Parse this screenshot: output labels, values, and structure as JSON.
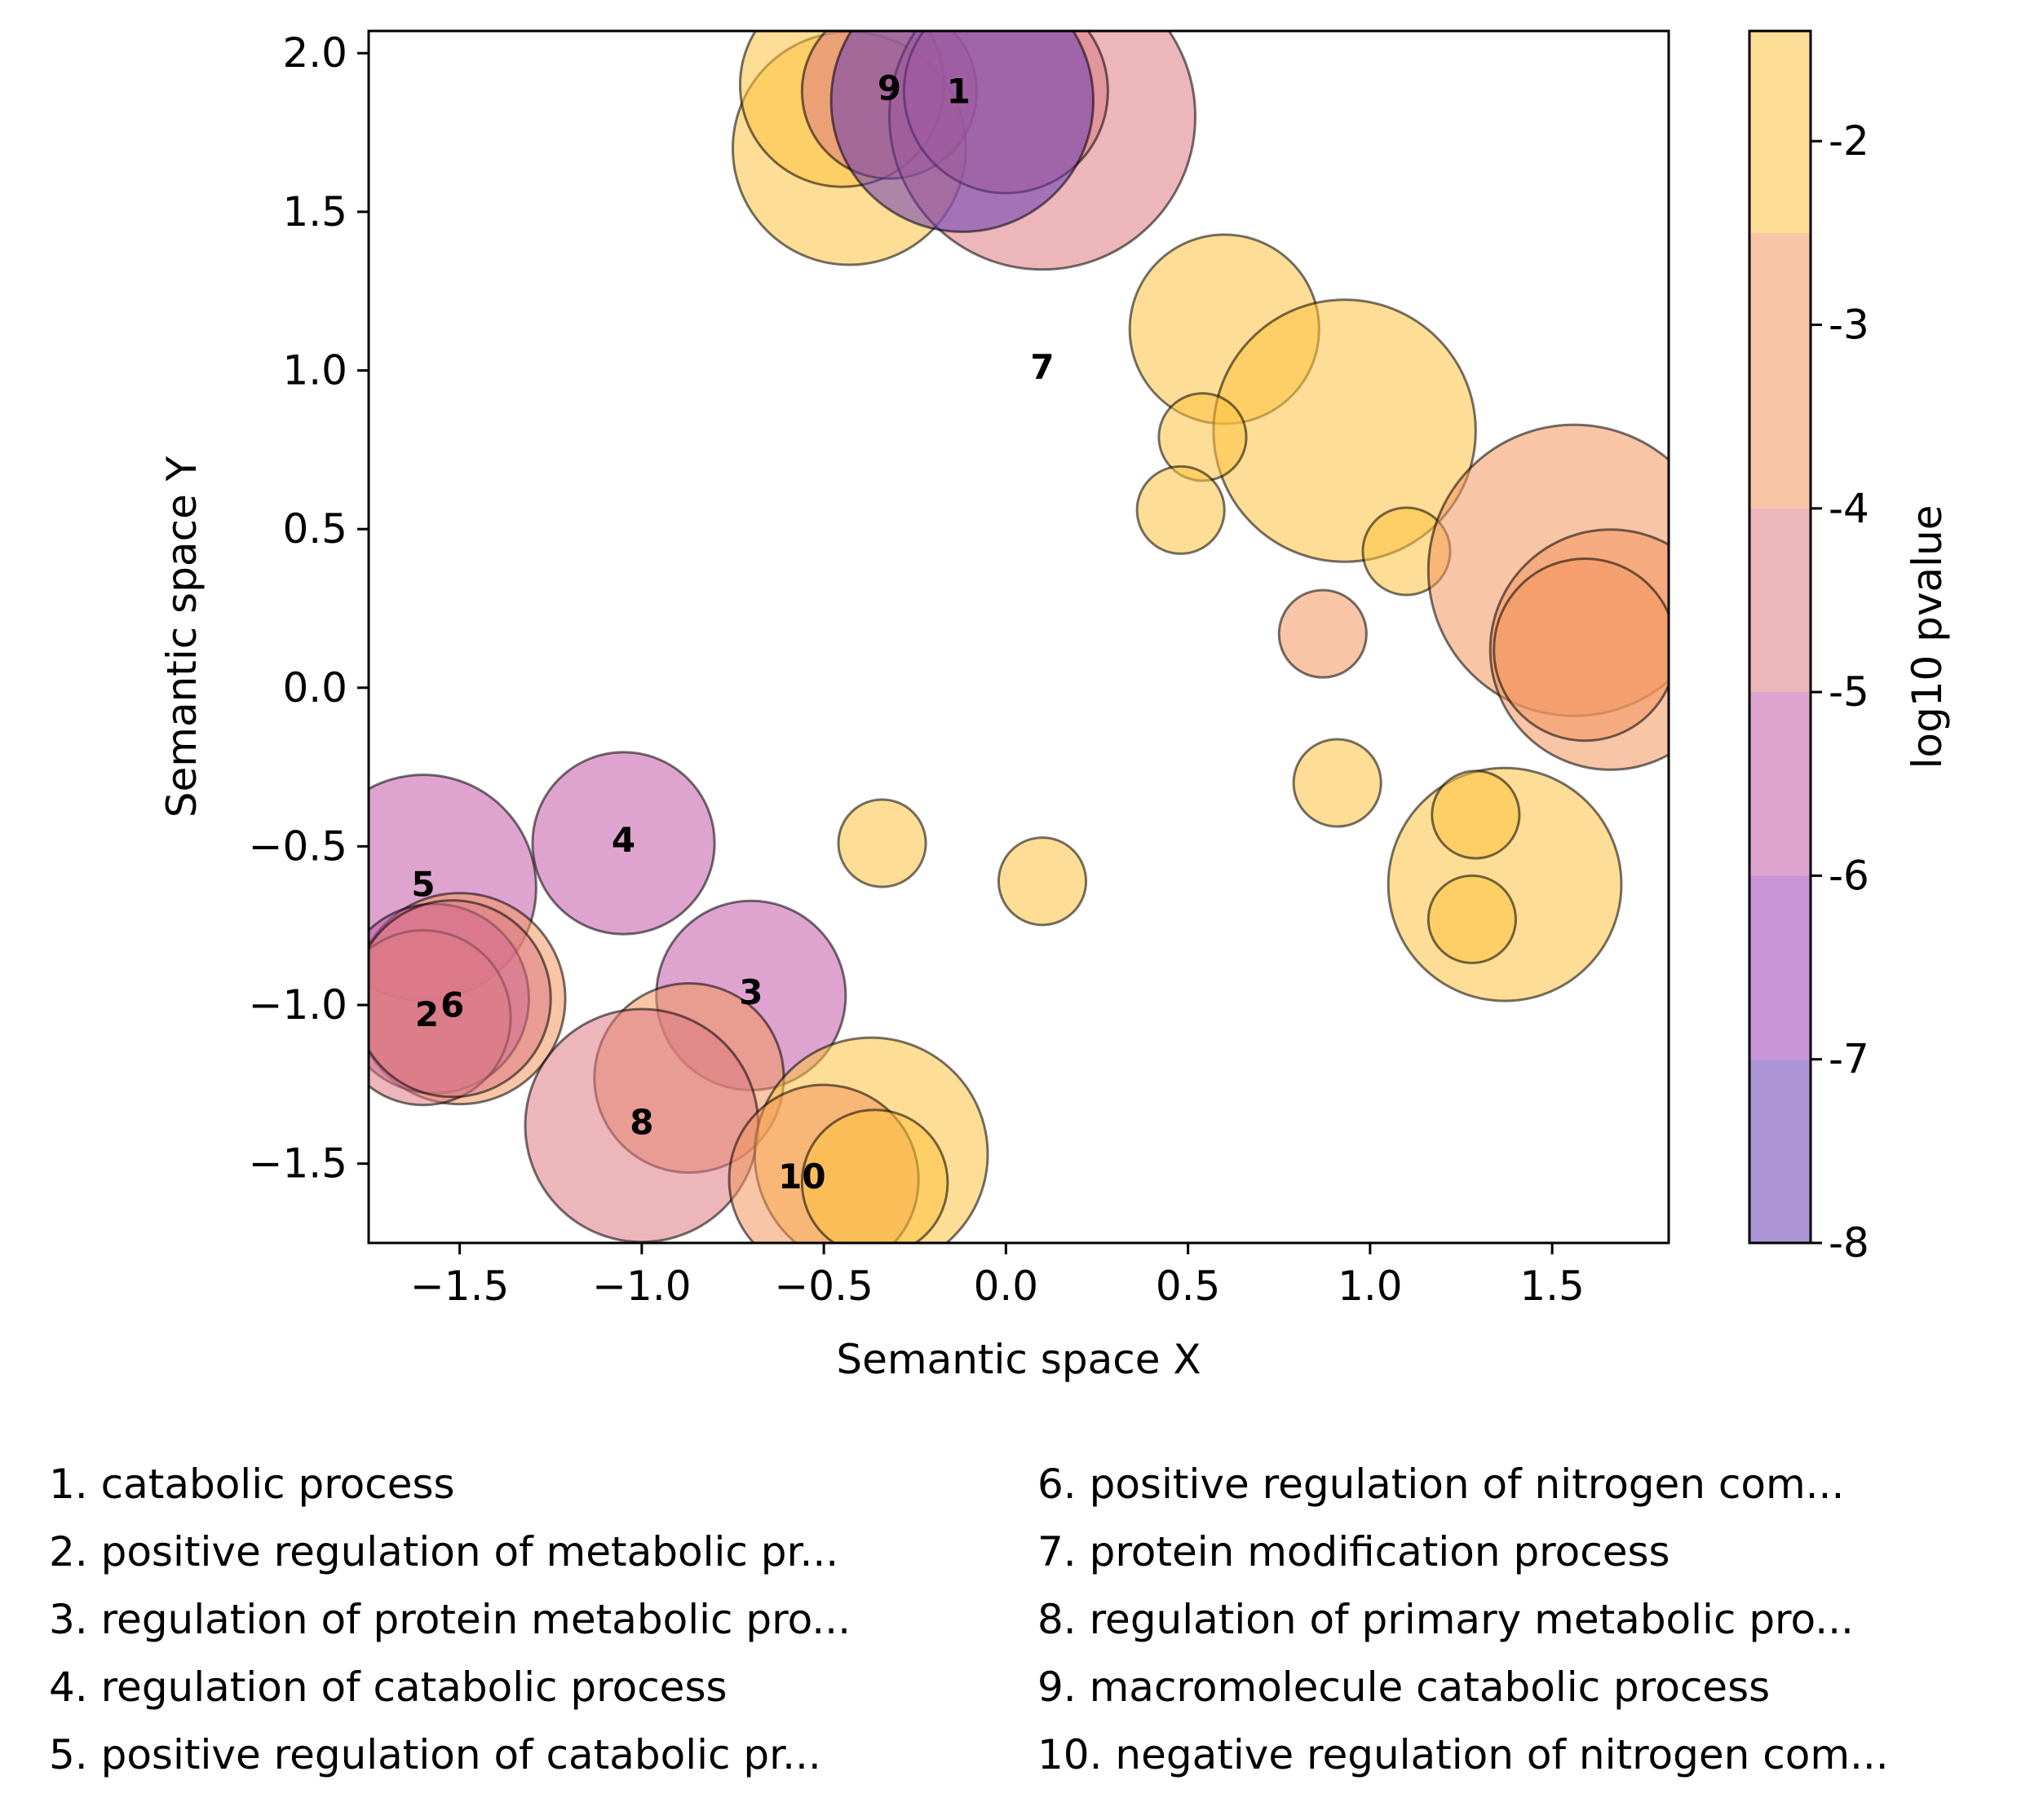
{
  "chart_data": {
    "type": "scatter",
    "xlabel": "Semantic space X",
    "ylabel": "Semantic space Y",
    "xlim": [
      -1.75,
      1.82
    ],
    "ylim": [
      -1.75,
      2.07
    ],
    "xticks": [
      -1.5,
      -1.0,
      -0.5,
      0.0,
      0.5,
      1.0,
      1.5
    ],
    "xtick_labels": [
      "−1.5",
      "−1.0",
      "−0.5",
      "0.0",
      "0.5",
      "1.0",
      "1.5"
    ],
    "yticks": [
      -1.5,
      -1.0,
      -0.5,
      0.0,
      0.5,
      1.0,
      1.5,
      2.0
    ],
    "ytick_labels": [
      "−1.5",
      "−1.0",
      "−0.5",
      "0.0",
      "0.5",
      "1.0",
      "1.5",
      "2.0"
    ],
    "grid": false,
    "colorbar": {
      "label": "log10 pvalue",
      "range": [
        -8,
        -1.4
      ],
      "ticks": [
        -8,
        -7,
        -6,
        -5,
        -4,
        -3,
        -2
      ],
      "tick_labels": [
        "-8",
        "-7",
        "-6",
        "-5",
        "-4",
        "-3",
        "-2"
      ],
      "bands": [
        {
          "from": -8,
          "to": -7,
          "color": "#6a3db5"
        },
        {
          "from": -7,
          "to": -6,
          "color": "#9c3ab8"
        },
        {
          "from": -6,
          "to": -5,
          "color": "#c25aa8"
        },
        {
          "from": -5,
          "to": -4,
          "color": "#dc7a84"
        },
        {
          "from": -4,
          "to": -2.5,
          "color": "#f3955f"
        },
        {
          "from": -2.5,
          "to": -1.4,
          "color": "#fdc33f"
        }
      ]
    },
    "points": [
      {
        "x": -0.43,
        "y": 1.7,
        "r": 0.32,
        "logp": -2.0
      },
      {
        "x": -0.45,
        "y": 1.9,
        "r": 0.28,
        "logp": -2.0
      },
      {
        "x": -0.32,
        "y": 1.88,
        "r": 0.24,
        "logp": -4.5
      },
      {
        "x": 0.1,
        "y": 1.8,
        "r": 0.42,
        "logp": -4.2
      },
      {
        "x": 0.0,
        "y": 1.88,
        "r": 0.28,
        "logp": -4.5
      },
      {
        "x": -0.12,
        "y": 1.85,
        "r": 0.36,
        "logp": -7.5
      },
      {
        "x": 0.6,
        "y": 1.13,
        "r": 0.26,
        "logp": -2.0
      },
      {
        "x": 0.93,
        "y": 0.81,
        "r": 0.36,
        "logp": -2.0
      },
      {
        "x": 0.54,
        "y": 0.79,
        "r": 0.12,
        "logp": -2.0
      },
      {
        "x": 0.48,
        "y": 0.56,
        "r": 0.12,
        "logp": -2.0
      },
      {
        "x": 1.1,
        "y": 0.43,
        "r": 0.12,
        "logp": -2.0
      },
      {
        "x": 0.87,
        "y": 0.17,
        "r": 0.12,
        "logp": -3.0
      },
      {
        "x": 1.56,
        "y": 0.37,
        "r": 0.4,
        "logp": -3.0
      },
      {
        "x": 1.66,
        "y": 0.12,
        "r": 0.33,
        "logp": -3.0
      },
      {
        "x": 1.59,
        "y": 0.12,
        "r": 0.25,
        "logp": -3.0
      },
      {
        "x": 0.91,
        "y": -0.3,
        "r": 0.12,
        "logp": -2.0
      },
      {
        "x": 1.37,
        "y": -0.62,
        "r": 0.32,
        "logp": -2.0
      },
      {
        "x": 1.29,
        "y": -0.4,
        "r": 0.12,
        "logp": -2.0
      },
      {
        "x": 1.28,
        "y": -0.73,
        "r": 0.12,
        "logp": -2.0
      },
      {
        "x": -0.34,
        "y": -0.49,
        "r": 0.12,
        "logp": -2.0
      },
      {
        "x": 0.1,
        "y": -0.61,
        "r": 0.12,
        "logp": -2.0
      },
      {
        "x": -1.6,
        "y": -0.63,
        "r": 0.31,
        "logp": -6.0
      },
      {
        "x": -1.05,
        "y": -0.49,
        "r": 0.25,
        "logp": -6.0
      },
      {
        "x": -1.5,
        "y": -0.98,
        "r": 0.29,
        "logp": -4.0
      },
      {
        "x": -1.57,
        "y": -0.98,
        "r": 0.26,
        "logp": -6.0
      },
      {
        "x": -1.6,
        "y": -1.04,
        "r": 0.24,
        "logp": -4.5
      },
      {
        "x": -1.52,
        "y": -0.98,
        "r": 0.27,
        "logp": -5.0
      },
      {
        "x": -0.7,
        "y": -0.97,
        "r": 0.26,
        "logp": -6.0
      },
      {
        "x": -0.87,
        "y": -1.23,
        "r": 0.26,
        "logp": -4.0
      },
      {
        "x": -1.0,
        "y": -1.38,
        "r": 0.32,
        "logp": -5.0
      },
      {
        "x": -0.37,
        "y": -1.47,
        "r": 0.32,
        "logp": -2.0
      },
      {
        "x": -0.5,
        "y": -1.55,
        "r": 0.26,
        "logp": -3.5
      },
      {
        "x": -0.36,
        "y": -1.56,
        "r": 0.2,
        "logp": -2.0
      }
    ],
    "labels": [
      {
        "text": "1",
        "x": -0.13,
        "y": 1.88
      },
      {
        "text": "9",
        "x": -0.32,
        "y": 1.89
      },
      {
        "text": "7",
        "x": 0.1,
        "y": 1.01
      },
      {
        "text": "4",
        "x": -1.05,
        "y": -0.48
      },
      {
        "text": "5",
        "x": -1.6,
        "y": -0.62
      },
      {
        "text": "2",
        "x": -1.59,
        "y": -1.03
      },
      {
        "text": "6",
        "x": -1.52,
        "y": -1.0
      },
      {
        "text": "3",
        "x": -0.7,
        "y": -0.96
      },
      {
        "text": "8",
        "x": -1.0,
        "y": -1.37
      },
      {
        "text": "10",
        "x": -0.56,
        "y": -1.54
      }
    ]
  },
  "legend": {
    "left": [
      "1. catabolic process",
      "2. positive regulation of metabolic pr...",
      "3. regulation of protein metabolic pro...",
      "4. regulation of catabolic process",
      "5. positive regulation of catabolic pr..."
    ],
    "right": [
      "6. positive regulation of nitrogen com...",
      "7. protein modification process",
      "8. regulation of primary metabolic pro...",
      "9. macromolecule catabolic process",
      "10. negative regulation of nitrogen com..."
    ]
  }
}
